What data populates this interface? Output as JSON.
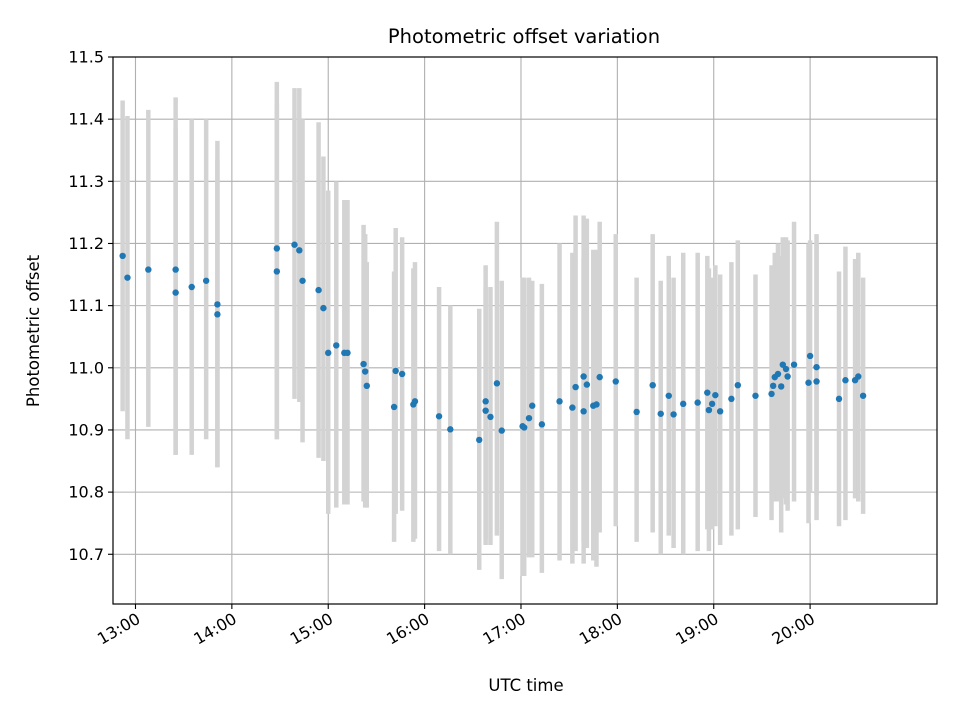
{
  "chart_data": {
    "type": "scatter",
    "title": "Photometric offset variation",
    "xlabel": "UTC time",
    "ylabel": "Photometric offset",
    "ylim": [
      10.62,
      11.5
    ],
    "xlim": [
      "12:46",
      "21:19"
    ],
    "grid": true,
    "legend": "none",
    "colors": {
      "points": "#1f77b4",
      "errorbars": "#d3d3d3",
      "grid": "#b0b0b0"
    },
    "x_ticks": [
      "13:00",
      "14:00",
      "15:00",
      "16:00",
      "17:00",
      "18:00",
      "19:00",
      "20:00"
    ],
    "y_ticks": [
      "10.7",
      "10.8",
      "10.9",
      "11.0",
      "11.1",
      "11.2",
      "11.3",
      "11.4",
      "11.5"
    ],
    "series": [
      {
        "x": [
          "12:52",
          "12:55",
          "13:08",
          "13:25",
          "13:25",
          "13:35",
          "13:44",
          "13:51",
          "13:51",
          "14:28",
          "14:28",
          "14:39",
          "14:42",
          "14:44",
          "14:54",
          "14:57",
          "15:00",
          "15:05",
          "15:10",
          "15:12",
          "15:22",
          "15:23",
          "15:24",
          "15:41",
          "15:42",
          "15:46",
          "15:53",
          "15:54",
          "16:09",
          "16:16",
          "16:34",
          "16:38",
          "16:38",
          "16:41",
          "16:45",
          "16:48",
          "17:01",
          "17:02",
          "17:05",
          "17:07",
          "17:13",
          "17:24",
          "17:32",
          "17:34",
          "17:39",
          "17:39",
          "17:41",
          "17:45",
          "17:47",
          "17:49",
          "17:59",
          "18:12",
          "18:22",
          "18:27",
          "18:32",
          "18:35",
          "18:41",
          "18:50",
          "18:56",
          "18:57",
          "18:59",
          "19:01",
          "19:04",
          "19:11",
          "19:15",
          "19:26",
          "19:36",
          "19:37",
          "19:38",
          "19:40",
          "19:42",
          "19:43",
          "19:45",
          "19:46",
          "19:50",
          "19:59",
          "20:00",
          "20:04",
          "20:04",
          "20:18",
          "20:22",
          "20:28",
          "20:30",
          "20:33"
        ],
        "y": [
          11.18,
          11.145,
          11.158,
          11.158,
          11.121,
          11.13,
          11.14,
          11.102,
          11.086,
          11.192,
          11.155,
          11.198,
          11.189,
          11.14,
          11.125,
          11.096,
          11.024,
          11.036,
          11.024,
          11.024,
          11.006,
          10.994,
          10.971,
          10.937,
          10.995,
          10.99,
          10.941,
          10.946,
          10.922,
          10.901,
          10.884,
          10.946,
          10.931,
          10.921,
          10.975,
          10.899,
          10.906,
          10.904,
          10.919,
          10.939,
          10.909,
          10.946,
          10.936,
          10.969,
          10.986,
          10.93,
          10.973,
          10.939,
          10.941,
          10.985,
          10.978,
          10.929,
          10.972,
          10.926,
          10.955,
          10.925,
          10.942,
          10.944,
          10.96,
          10.932,
          10.942,
          10.956,
          10.93,
          10.95,
          10.972,
          10.955,
          10.958,
          10.971,
          10.985,
          10.99,
          10.97,
          11.005,
          10.998,
          10.986,
          11.005,
          10.976,
          11.019,
          10.978,
          11.001,
          10.95,
          10.98,
          10.98,
          10.986,
          10.955
        ],
        "lower": [
          10.93,
          10.885,
          10.905,
          10.86,
          10.86,
          10.86,
          10.885,
          10.84,
          10.84,
          10.885,
          10.885,
          10.95,
          10.945,
          10.88,
          10.855,
          10.85,
          10.765,
          10.775,
          10.78,
          10.78,
          10.785,
          10.775,
          10.775,
          10.72,
          10.765,
          10.77,
          10.72,
          10.725,
          10.705,
          10.7,
          10.675,
          10.725,
          10.715,
          10.715,
          10.73,
          10.66,
          10.665,
          10.665,
          10.695,
          10.695,
          10.67,
          10.69,
          10.685,
          10.705,
          10.72,
          10.685,
          10.71,
          10.69,
          10.68,
          10.735,
          10.745,
          10.72,
          10.735,
          10.7,
          10.73,
          10.71,
          10.7,
          10.705,
          10.74,
          10.705,
          10.74,
          10.745,
          10.715,
          10.73,
          10.74,
          10.76,
          10.755,
          10.785,
          10.785,
          10.785,
          10.735,
          10.79,
          10.78,
          10.77,
          10.785,
          10.75,
          10.8,
          10.755,
          10.795,
          10.745,
          10.755,
          10.79,
          10.785,
          10.765
        ],
        "upper": [
          11.43,
          11.405,
          11.415,
          11.435,
          11.385,
          11.4,
          11.4,
          11.335,
          11.365,
          11.46,
          11.425,
          11.45,
          11.45,
          11.4,
          11.395,
          11.34,
          11.285,
          11.3,
          11.27,
          11.27,
          11.23,
          11.215,
          11.17,
          11.155,
          11.225,
          11.21,
          11.16,
          11.17,
          11.13,
          11.1,
          11.095,
          11.165,
          11.13,
          11.13,
          11.235,
          11.14,
          11.145,
          11.145,
          11.145,
          11.14,
          11.135,
          11.2,
          11.185,
          11.245,
          11.245,
          11.175,
          11.24,
          11.19,
          11.19,
          11.235,
          11.215,
          11.145,
          11.215,
          11.14,
          11.18,
          11.145,
          11.185,
          11.185,
          11.18,
          11.16,
          11.145,
          11.165,
          11.15,
          11.17,
          11.205,
          11.15,
          11.165,
          11.16,
          11.185,
          11.2,
          11.18,
          11.21,
          11.21,
          11.205,
          11.235,
          11.2,
          11.205,
          11.2,
          11.215,
          11.155,
          11.195,
          11.175,
          11.185,
          11.145
        ]
      }
    ]
  }
}
